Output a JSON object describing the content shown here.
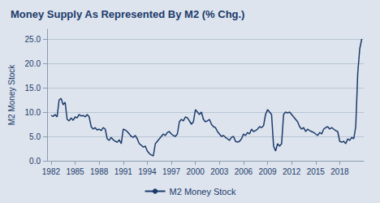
{
  "chart_data": {
    "type": "line",
    "title": "Money Supply As Represented By M2 (% Chg.)",
    "ylabel": "M2 Money Stock",
    "x": [
      1982.0,
      1982.25,
      1982.5,
      1982.75,
      1983.0,
      1983.25,
      1983.5,
      1983.75,
      1984.0,
      1984.25,
      1984.5,
      1984.75,
      1985.0,
      1985.25,
      1985.5,
      1985.75,
      1986.0,
      1986.25,
      1986.5,
      1986.75,
      1987.0,
      1987.25,
      1987.5,
      1987.75,
      1988.0,
      1988.25,
      1988.5,
      1988.75,
      1989.0,
      1989.25,
      1989.5,
      1989.75,
      1990.0,
      1990.25,
      1990.5,
      1990.75,
      1991.0,
      1991.25,
      1991.5,
      1991.75,
      1992.0,
      1992.25,
      1992.5,
      1992.75,
      1993.0,
      1993.25,
      1993.5,
      1993.75,
      1994.0,
      1994.25,
      1994.5,
      1994.75,
      1995.0,
      1995.25,
      1995.5,
      1995.75,
      1996.0,
      1996.25,
      1996.5,
      1996.75,
      1997.0,
      1997.25,
      1997.5,
      1997.75,
      1998.0,
      1998.25,
      1998.5,
      1998.75,
      1999.0,
      1999.25,
      1999.5,
      1999.75,
      2000.0,
      2000.25,
      2000.5,
      2000.75,
      2001.0,
      2001.25,
      2001.5,
      2001.75,
      2002.0,
      2002.25,
      2002.5,
      2002.75,
      2003.0,
      2003.25,
      2003.5,
      2003.75,
      2004.0,
      2004.25,
      2004.5,
      2004.75,
      2005.0,
      2005.25,
      2005.5,
      2005.75,
      2006.0,
      2006.25,
      2006.5,
      2006.75,
      2007.0,
      2007.25,
      2007.5,
      2007.75,
      2008.0,
      2008.25,
      2008.5,
      2008.75,
      2009.0,
      2009.25,
      2009.5,
      2009.75,
      2010.0,
      2010.25,
      2010.5,
      2010.75,
      2011.0,
      2011.25,
      2011.5,
      2011.75,
      2012.0,
      2012.25,
      2012.5,
      2012.75,
      2013.0,
      2013.25,
      2013.5,
      2013.75,
      2014.0,
      2014.25,
      2014.5,
      2014.75,
      2015.0,
      2015.25,
      2015.5,
      2015.75,
      2016.0,
      2016.25,
      2016.5,
      2016.75,
      2017.0,
      2017.25,
      2017.5,
      2017.75,
      2018.0,
      2018.25,
      2018.5,
      2018.75,
      2019.0,
      2019.25,
      2019.5,
      2019.75,
      2020.0,
      2020.25,
      2020.5,
      2020.75
    ],
    "series": [
      {
        "name": "M2 Money Stock",
        "color": "#1b3a6b",
        "values": [
          9.3,
          9.1,
          9.5,
          9.0,
          12.5,
          12.8,
          11.5,
          12.0,
          8.5,
          8.2,
          8.8,
          8.3,
          9.0,
          8.8,
          9.5,
          9.2,
          9.3,
          9.0,
          9.5,
          9.0,
          7.0,
          6.5,
          6.8,
          6.3,
          6.5,
          6.2,
          6.8,
          6.5,
          4.5,
          4.2,
          4.8,
          4.3,
          4.0,
          3.8,
          4.3,
          3.5,
          6.5,
          6.3,
          6.0,
          5.5,
          5.0,
          4.8,
          5.2,
          4.5,
          3.5,
          3.2,
          2.8,
          3.0,
          2.0,
          1.5,
          1.2,
          1.0,
          3.5,
          4.0,
          4.5,
          5.0,
          5.5,
          5.2,
          5.8,
          6.0,
          5.5,
          5.2,
          5.0,
          5.5,
          8.0,
          8.5,
          8.2,
          9.0,
          8.8,
          8.2,
          7.5,
          8.0,
          10.5,
          10.0,
          9.5,
          10.0,
          8.5,
          8.0,
          8.2,
          8.5,
          7.5,
          7.0,
          6.8,
          6.0,
          5.5,
          5.0,
          5.2,
          4.8,
          4.5,
          4.2,
          4.8,
          5.0,
          4.0,
          3.8,
          4.0,
          4.5,
          5.5,
          5.2,
          5.8,
          5.5,
          6.5,
          6.0,
          6.2,
          6.5,
          7.0,
          6.8,
          7.2,
          9.5,
          10.5,
          10.0,
          9.5,
          3.0,
          2.0,
          3.5,
          3.0,
          3.5,
          9.5,
          10.0,
          9.8,
          10.0,
          9.5,
          9.0,
          8.5,
          8.0,
          7.0,
          6.5,
          6.8,
          6.0,
          6.5,
          6.2,
          6.0,
          5.8,
          5.5,
          5.2,
          5.8,
          5.5,
          6.5,
          6.8,
          7.0,
          6.5,
          6.8,
          6.5,
          6.2,
          6.0,
          4.0,
          3.8,
          4.0,
          3.5,
          4.5,
          4.2,
          4.8,
          4.5,
          7.0,
          18.0,
          23.0,
          25.0
        ]
      }
    ],
    "xlim": [
      1981.5,
      2021.0
    ],
    "xticks": [
      1982,
      1985,
      1988,
      1991,
      1994,
      1997,
      2000,
      2003,
      2006,
      2009,
      2012,
      2015,
      2018
    ],
    "ylim": [
      0.0,
      27.0
    ],
    "yticks": [
      {
        "value": 0.0,
        "label": "0.0"
      },
      {
        "value": 5.0,
        "label": "5.0"
      },
      {
        "value": 10.0,
        "label": "10.0"
      },
      {
        "value": 15.0,
        "label": "15.0"
      },
      {
        "value": 20.0,
        "label": "20.0"
      },
      {
        "value": 25.0,
        "label": "25.0"
      }
    ],
    "grid": true,
    "legend": "bottom"
  }
}
